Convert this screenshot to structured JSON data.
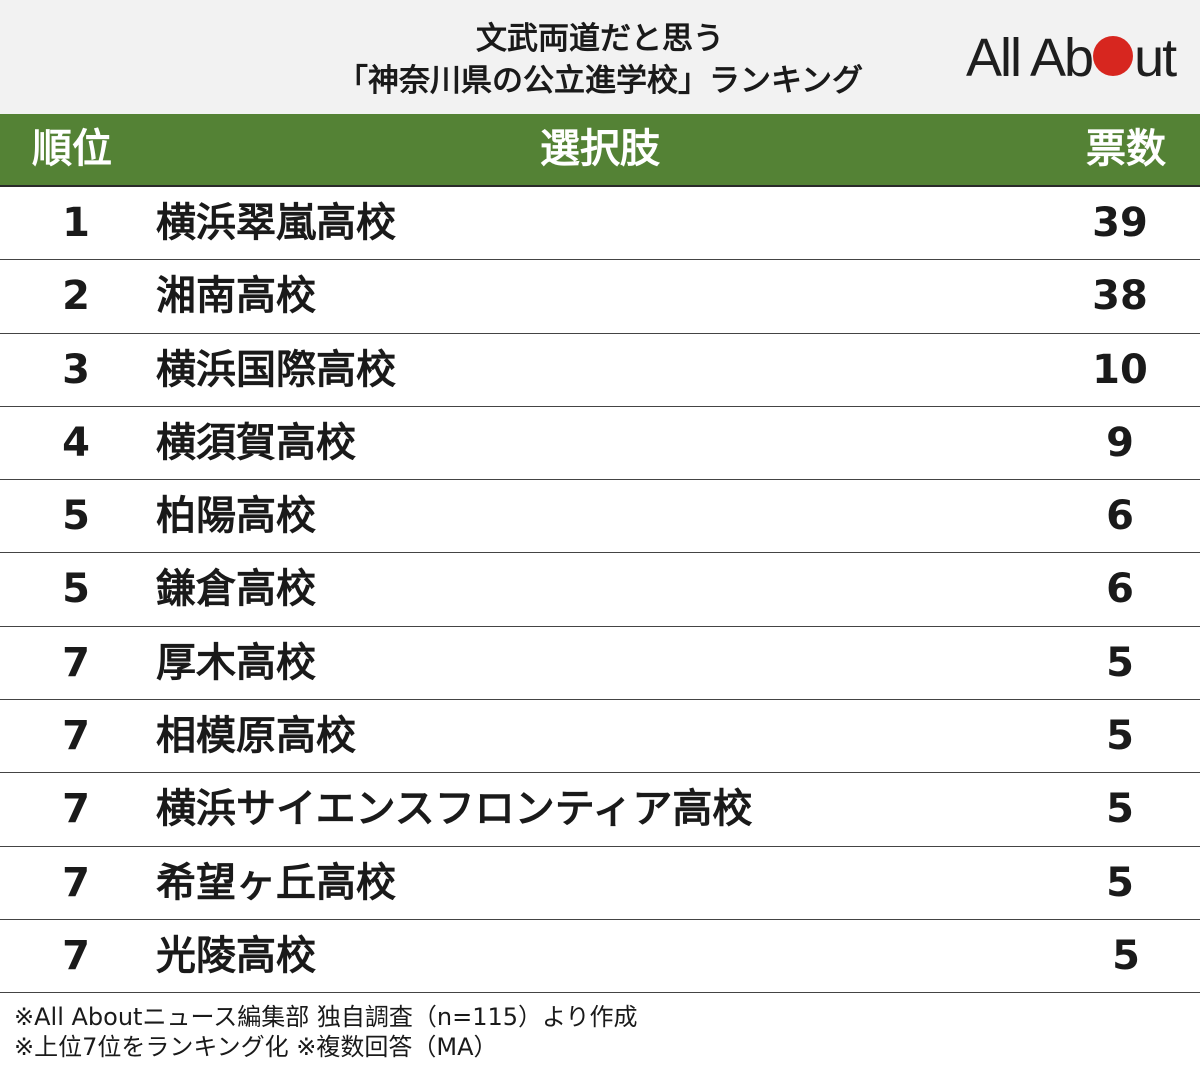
{
  "header": {
    "title_line1": "文武両道だと思う",
    "title_line2": "「神奈川県の公立進学校」ランキング",
    "logo_prefix": "All Ab",
    "logo_suffix": "ut",
    "logo_dot_color": "#d7261f"
  },
  "table": {
    "columns": {
      "rank": "順位",
      "choice": "選択肢",
      "votes": "票数"
    },
    "header_color": "#548235"
  },
  "chart_data": {
    "type": "table",
    "title": "文武両道だと思う「神奈川県の公立進学校」ランキング",
    "columns": [
      "順位",
      "選択肢",
      "票数"
    ],
    "rows": [
      {
        "rank": "1",
        "name": "横浜翠嵐高校",
        "votes": "39"
      },
      {
        "rank": "2",
        "name": "湘南高校",
        "votes": "38"
      },
      {
        "rank": "3",
        "name": "横浜国際高校",
        "votes": "10"
      },
      {
        "rank": "4",
        "name": "横須賀高校",
        "votes": "9"
      },
      {
        "rank": "5",
        "name": "柏陽高校",
        "votes": "6"
      },
      {
        "rank": "5",
        "name": "鎌倉高校",
        "votes": "6"
      },
      {
        "rank": "7",
        "name": "厚木高校",
        "votes": "5"
      },
      {
        "rank": "7",
        "name": "相模原高校",
        "votes": "5"
      },
      {
        "rank": "7",
        "name": "横浜サイエンスフロンティア高校",
        "votes": "5"
      },
      {
        "rank": "7",
        "name": "希望ヶ丘高校",
        "votes": "5"
      },
      {
        "rank": "7",
        "name": "光陵高校",
        "votes": "5"
      }
    ]
  },
  "footer": {
    "note1": "※All Aboutニュース編集部 独自調査（n=115）より作成",
    "note2": "※上位7位をランキング化 ※複数回答（MA）"
  }
}
